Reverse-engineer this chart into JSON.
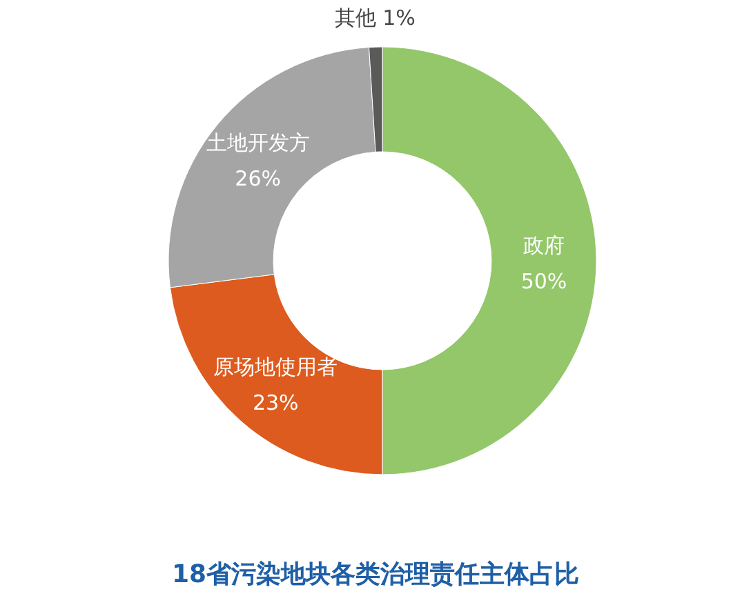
{
  "chart_data": {
    "type": "donut",
    "title": "18省污染地块各类治理责任主体占比",
    "categories": [
      "政府",
      "原场地使用者",
      "土地开发方",
      "其他"
    ],
    "values": [
      50,
      23,
      26,
      1
    ],
    "value_labels": [
      "50%",
      "23%",
      "26%",
      "1%"
    ],
    "colors": [
      "#93c76a",
      "#dd5b1e",
      "#a5a5a5",
      "#5a5a5a"
    ]
  }
}
